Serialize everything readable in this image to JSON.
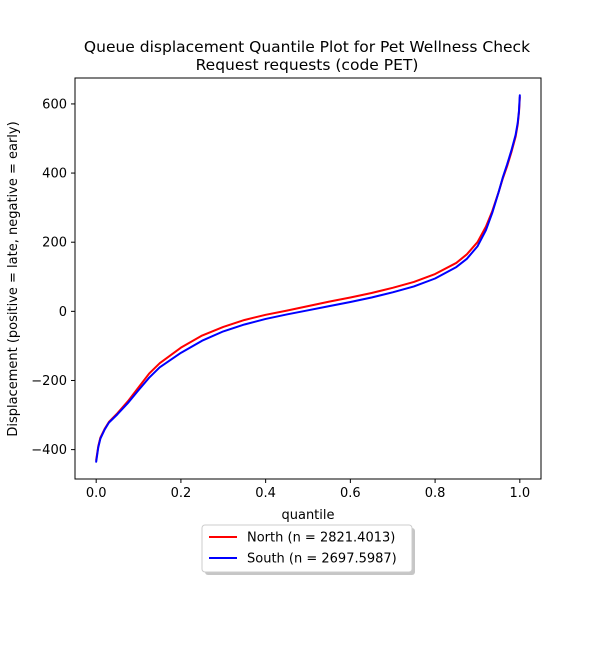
{
  "chart_data": {
    "type": "line",
    "title_lines": [
      "Queue displacement Quantile Plot for Pet Wellness Check",
      "Request  requests (code PET)"
    ],
    "xlabel": "quantile",
    "ylabel": "Displacement (positive = late, negative = early)",
    "xlim": [
      -0.05,
      1.05
    ],
    "ylim": [
      -485,
      675
    ],
    "xticks": [
      0.0,
      0.2,
      0.4,
      0.6,
      0.8,
      1.0
    ],
    "xtick_labels": [
      "0.0",
      "0.2",
      "0.4",
      "0.6",
      "0.8",
      "1.0"
    ],
    "yticks": [
      -400,
      -200,
      0,
      200,
      400,
      600
    ],
    "ytick_labels": [
      "−400",
      "−200",
      "0",
      "200",
      "400",
      "600"
    ],
    "grid": false,
    "legend_placement": "bottom-center, below axes",
    "series": [
      {
        "name": "North (n = 2821.4013)",
        "color": "#ff0000",
        "x": [
          0.0,
          0.005,
          0.01,
          0.02,
          0.03,
          0.05,
          0.075,
          0.1,
          0.125,
          0.15,
          0.2,
          0.25,
          0.3,
          0.35,
          0.4,
          0.45,
          0.5,
          0.55,
          0.6,
          0.65,
          0.7,
          0.75,
          0.8,
          0.85,
          0.875,
          0.9,
          0.92,
          0.935,
          0.95,
          0.96,
          0.97,
          0.98,
          0.99,
          0.995,
          0.998,
          1.0
        ],
        "y": [
          -430,
          -390,
          -365,
          -340,
          -320,
          -295,
          -260,
          -220,
          -180,
          -150,
          -105,
          -70,
          -45,
          -25,
          -10,
          2,
          15,
          28,
          40,
          53,
          68,
          85,
          108,
          140,
          165,
          200,
          245,
          290,
          345,
          385,
          420,
          460,
          505,
          540,
          575,
          620
        ]
      },
      {
        "name": "South (n = 2697.5987)",
        "color": "#0000ff",
        "x": [
          0.0,
          0.005,
          0.01,
          0.02,
          0.03,
          0.05,
          0.075,
          0.1,
          0.125,
          0.15,
          0.2,
          0.25,
          0.3,
          0.35,
          0.4,
          0.45,
          0.5,
          0.55,
          0.6,
          0.65,
          0.7,
          0.75,
          0.8,
          0.85,
          0.875,
          0.9,
          0.92,
          0.935,
          0.95,
          0.96,
          0.97,
          0.98,
          0.99,
          0.995,
          0.998,
          1.0
        ],
        "y": [
          -435,
          -393,
          -368,
          -342,
          -322,
          -298,
          -265,
          -228,
          -192,
          -162,
          -120,
          -85,
          -58,
          -38,
          -22,
          -9,
          3,
          15,
          27,
          40,
          55,
          72,
          95,
          128,
          152,
          188,
          235,
          285,
          345,
          388,
          425,
          465,
          510,
          545,
          580,
          625
        ]
      }
    ]
  }
}
